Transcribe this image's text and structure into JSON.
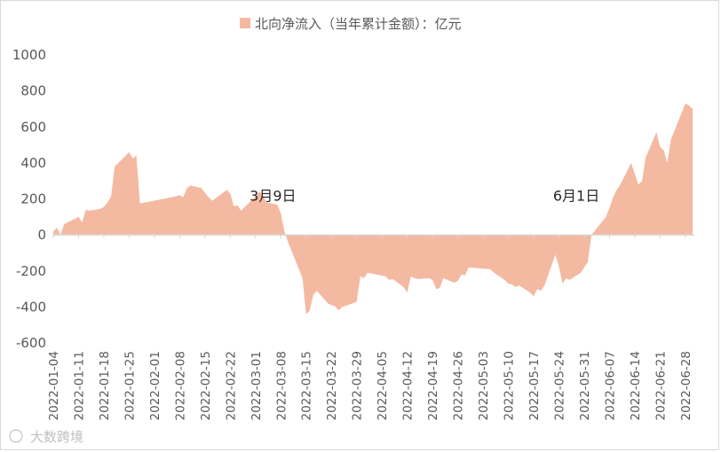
{
  "chart_data": {
    "type": "area",
    "legend": {
      "label": "北向净流入（当年累计金额）：亿元",
      "color": "#f4b9a1",
      "position": "top"
    },
    "ylim": [
      -600,
      1000
    ],
    "yticks": [
      "1000",
      "800",
      "600",
      "400",
      "200",
      "0",
      "-200",
      "-400",
      "-600"
    ],
    "xticks": [
      "2022-01-04",
      "2022-01-11",
      "2022-01-18",
      "2022-01-25",
      "2022-02-01",
      "2022-02-08",
      "2022-02-15",
      "2022-02-22",
      "2022-03-01",
      "2022-03-08",
      "2022-03-15",
      "2022-03-22",
      "2022-03-29",
      "2022-04-05",
      "2022-04-12",
      "2022-04-19",
      "2022-04-26",
      "2022-05-03",
      "2022-05-10",
      "2022-05-17",
      "2022-05-24",
      "2022-05-31",
      "2022-06-07",
      "2022-06-14",
      "2022-06-21",
      "2022-06-28"
    ],
    "series": [
      {
        "name": "北向净流入（当年累计金额）：亿元",
        "points": [
          [
            "2022-01-04",
            20
          ],
          [
            "2022-01-05",
            40
          ],
          [
            "2022-01-06",
            0
          ],
          [
            "2022-01-07",
            60
          ],
          [
            "2022-01-10",
            90
          ],
          [
            "2022-01-11",
            100
          ],
          [
            "2022-01-12",
            70
          ],
          [
            "2022-01-13",
            140
          ],
          [
            "2022-01-14",
            135
          ],
          [
            "2022-01-17",
            145
          ],
          [
            "2022-01-18",
            155
          ],
          [
            "2022-01-19",
            180
          ],
          [
            "2022-01-20",
            215
          ],
          [
            "2022-01-21",
            380
          ],
          [
            "2022-01-24",
            440
          ],
          [
            "2022-01-25",
            460
          ],
          [
            "2022-01-26",
            425
          ],
          [
            "2022-01-27",
            440
          ],
          [
            "2022-01-28",
            175
          ],
          [
            "2022-02-07",
            215
          ],
          [
            "2022-02-08",
            220
          ],
          [
            "2022-02-09",
            210
          ],
          [
            "2022-02-10",
            260
          ],
          [
            "2022-02-11",
            275
          ],
          [
            "2022-02-14",
            260
          ],
          [
            "2022-02-15",
            235
          ],
          [
            "2022-02-16",
            210
          ],
          [
            "2022-02-17",
            190
          ],
          [
            "2022-02-18",
            205
          ],
          [
            "2022-02-21",
            250
          ],
          [
            "2022-02-22",
            230
          ],
          [
            "2022-02-23",
            160
          ],
          [
            "2022-02-24",
            165
          ],
          [
            "2022-02-25",
            135
          ],
          [
            "2022-02-28",
            195
          ],
          [
            "2022-03-01",
            215
          ],
          [
            "2022-03-02",
            240
          ],
          [
            "2022-03-03",
            225
          ],
          [
            "2022-03-04",
            180
          ],
          [
            "2022-03-07",
            170
          ],
          [
            "2022-03-08",
            120
          ],
          [
            "2022-03-09",
            20
          ],
          [
            "2022-03-10",
            -40
          ],
          [
            "2022-03-11",
            -90
          ],
          [
            "2022-03-14",
            -240
          ],
          [
            "2022-03-15",
            -440
          ],
          [
            "2022-03-16",
            -420
          ],
          [
            "2022-03-17",
            -330
          ],
          [
            "2022-03-18",
            -310
          ],
          [
            "2022-03-21",
            -380
          ],
          [
            "2022-03-22",
            -390
          ],
          [
            "2022-03-23",
            -395
          ],
          [
            "2022-03-24",
            -420
          ],
          [
            "2022-03-25",
            -400
          ],
          [
            "2022-03-28",
            -380
          ],
          [
            "2022-03-29",
            -370
          ],
          [
            "2022-03-30",
            -230
          ],
          [
            "2022-03-31",
            -240
          ],
          [
            "2022-04-01",
            -210
          ],
          [
            "2022-04-06",
            -230
          ],
          [
            "2022-04-07",
            -250
          ],
          [
            "2022-04-08",
            -245
          ],
          [
            "2022-04-11",
            -290
          ],
          [
            "2022-04-12",
            -320
          ],
          [
            "2022-04-13",
            -230
          ],
          [
            "2022-04-14",
            -240
          ],
          [
            "2022-04-15",
            -245
          ],
          [
            "2022-04-18",
            -240
          ],
          [
            "2022-04-19",
            -250
          ],
          [
            "2022-04-20",
            -300
          ],
          [
            "2022-04-21",
            -295
          ],
          [
            "2022-04-22",
            -240
          ],
          [
            "2022-04-25",
            -265
          ],
          [
            "2022-04-26",
            -255
          ],
          [
            "2022-04-27",
            -220
          ],
          [
            "2022-04-28",
            -225
          ],
          [
            "2022-04-29",
            -180
          ],
          [
            "2022-05-05",
            -190
          ],
          [
            "2022-05-06",
            -210
          ],
          [
            "2022-05-09",
            -250
          ],
          [
            "2022-05-10",
            -270
          ],
          [
            "2022-05-11",
            -275
          ],
          [
            "2022-05-12",
            -290
          ],
          [
            "2022-05-13",
            -280
          ],
          [
            "2022-05-16",
            -320
          ],
          [
            "2022-05-17",
            -340
          ],
          [
            "2022-05-18",
            -300
          ],
          [
            "2022-05-19",
            -310
          ],
          [
            "2022-05-20",
            -280
          ],
          [
            "2022-05-23",
            -110
          ],
          [
            "2022-05-24",
            -175
          ],
          [
            "2022-05-25",
            -270
          ],
          [
            "2022-05-26",
            -240
          ],
          [
            "2022-05-27",
            -250
          ],
          [
            "2022-05-30",
            -210
          ],
          [
            "2022-05-31",
            -180
          ],
          [
            "2022-06-01",
            -150
          ],
          [
            "2022-06-02",
            0
          ],
          [
            "2022-06-06",
            100
          ],
          [
            "2022-06-07",
            150
          ],
          [
            "2022-06-08",
            210
          ],
          [
            "2022-06-09",
            250
          ],
          [
            "2022-06-10",
            280
          ],
          [
            "2022-06-13",
            400
          ],
          [
            "2022-06-14",
            340
          ],
          [
            "2022-06-15",
            280
          ],
          [
            "2022-06-16",
            300
          ],
          [
            "2022-06-17",
            430
          ],
          [
            "2022-06-20",
            570
          ],
          [
            "2022-06-21",
            490
          ],
          [
            "2022-06-22",
            470
          ],
          [
            "2022-06-23",
            400
          ],
          [
            "2022-06-24",
            530
          ],
          [
            "2022-06-27",
            680
          ],
          [
            "2022-06-28",
            730
          ],
          [
            "2022-06-29",
            720
          ],
          [
            "2022-06-30",
            700
          ]
        ]
      }
    ],
    "annotations": [
      {
        "label": "3月9日",
        "date": "2022-03-09"
      },
      {
        "label": "6月1日",
        "date": "2022-06-01"
      }
    ]
  },
  "watermark": "大数跨境",
  "colors": {
    "area": "#f4b9a1",
    "zero_line": "#d9d9d9",
    "tick_text": "#595959"
  }
}
